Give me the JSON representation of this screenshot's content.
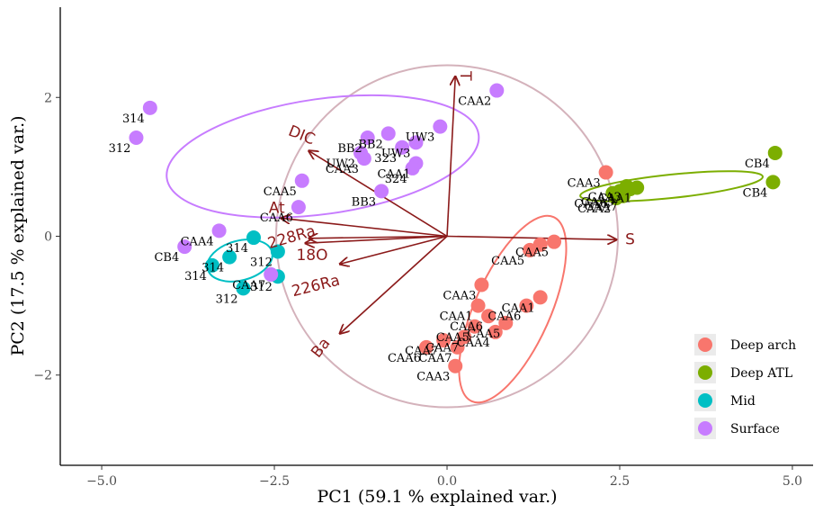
{
  "chart_data": {
    "type": "scatter",
    "subtype": "pca-biplot",
    "xlabel": "PC1 (59.1 % explained var.)",
    "ylabel": "PC2 (17.5 % explained var.)",
    "xlim": [
      -5.6,
      5.3
    ],
    "ylim": [
      -3.3,
      3.3
    ],
    "x_ticks": [
      -5.0,
      -2.5,
      0.0,
      2.5,
      5.0
    ],
    "x_tick_labels": [
      "−5.0",
      "−2.5",
      "0.0",
      "2.5",
      "5.0"
    ],
    "y_ticks": [
      -2,
      0,
      2
    ],
    "y_tick_labels": [
      "−2",
      "0",
      "2"
    ],
    "grid": false,
    "legend_position": "bottom-right",
    "series": [
      {
        "name": "Deep arch",
        "color": "#F8766D",
        "points": [
          {
            "x": 2.3,
            "y": 0.92,
            "label": "CAA3"
          },
          {
            "x": 1.55,
            "y": -0.08,
            "label": "CAA5"
          },
          {
            "x": 1.35,
            "y": -0.12,
            "label": ""
          },
          {
            "x": 1.2,
            "y": -0.2,
            "label": "CAA5"
          },
          {
            "x": 0.5,
            "y": -0.7,
            "label": "CAA3"
          },
          {
            "x": 1.35,
            "y": -0.88,
            "label": "CAA1"
          },
          {
            "x": 1.15,
            "y": -1.0,
            "label": "CAA6"
          },
          {
            "x": 0.45,
            "y": -1.0,
            "label": "CAA1"
          },
          {
            "x": 0.6,
            "y": -1.15,
            "label": "CAA6"
          },
          {
            "x": 0.85,
            "y": -1.25,
            "label": "CAA5"
          },
          {
            "x": 0.4,
            "y": -1.3,
            "label": "CAA5"
          },
          {
            "x": 0.7,
            "y": -1.38,
            "label": "CAA4"
          },
          {
            "x": 0.25,
            "y": -1.45,
            "label": "CAA7"
          },
          {
            "x": -0.05,
            "y": -1.5,
            "label": "CAA7"
          },
          {
            "x": -0.3,
            "y": -1.6,
            "label": "CAA6"
          },
          {
            "x": 0.15,
            "y": -1.6,
            "label": "CAA7"
          },
          {
            "x": 0.12,
            "y": -1.87,
            "label": "CAA3"
          }
        ]
      },
      {
        "name": "Deep ATL",
        "color": "#7CAE00",
        "points": [
          {
            "x": 4.75,
            "y": 1.2,
            "label": "CB4"
          },
          {
            "x": 4.72,
            "y": 0.78,
            "label": "CB4"
          },
          {
            "x": 2.75,
            "y": 0.7,
            "label": "CAA1"
          },
          {
            "x": 2.6,
            "y": 0.72,
            "label": "CAA3"
          },
          {
            "x": 2.5,
            "y": 0.65,
            "label": "CAA5"
          },
          {
            "x": 2.4,
            "y": 0.62,
            "label": "CAA6"
          },
          {
            "x": 2.55,
            "y": 0.58,
            "label": "CAA7"
          },
          {
            "x": 2.45,
            "y": 0.55,
            "label": "CAA2"
          },
          {
            "x": 2.65,
            "y": 0.68,
            "label": ""
          }
        ]
      },
      {
        "name": "Mid",
        "color": "#00BFC4",
        "points": [
          {
            "x": -2.8,
            "y": -0.02,
            "label": "314"
          },
          {
            "x": -2.45,
            "y": -0.22,
            "label": "312"
          },
          {
            "x": -3.15,
            "y": -0.3,
            "label": "314"
          },
          {
            "x": -3.4,
            "y": -0.42,
            "label": "314"
          },
          {
            "x": -2.45,
            "y": -0.58,
            "label": "312"
          },
          {
            "x": -2.95,
            "y": -0.75,
            "label": "312"
          }
        ]
      },
      {
        "name": "Surface",
        "color": "#C77CFF",
        "points": [
          {
            "x": 0.72,
            "y": 2.1,
            "label": "CAA2"
          },
          {
            "x": -4.3,
            "y": 1.85,
            "label": "314"
          },
          {
            "x": -4.5,
            "y": 1.42,
            "label": "312"
          },
          {
            "x": -0.1,
            "y": 1.58,
            "label": "UW3"
          },
          {
            "x": -0.85,
            "y": 1.48,
            "label": "BB2"
          },
          {
            "x": -1.15,
            "y": 1.42,
            "label": "BB2"
          },
          {
            "x": -0.45,
            "y": 1.35,
            "label": "UW3"
          },
          {
            "x": -0.65,
            "y": 1.28,
            "label": "323"
          },
          {
            "x": -1.25,
            "y": 1.2,
            "label": "UW2"
          },
          {
            "x": -0.45,
            "y": 1.05,
            "label": "CAA1"
          },
          {
            "x": -2.1,
            "y": 0.8,
            "label": "CAA5"
          },
          {
            "x": -0.95,
            "y": 0.65,
            "label": "BB3"
          },
          {
            "x": -0.5,
            "y": 0.98,
            "label": "324"
          },
          {
            "x": -1.2,
            "y": 1.12,
            "label": "CAA3"
          },
          {
            "x": -2.15,
            "y": 0.42,
            "label": "CAA6"
          },
          {
            "x": -3.3,
            "y": 0.08,
            "label": "CAA4"
          },
          {
            "x": -3.8,
            "y": -0.15,
            "label": "CB4"
          },
          {
            "x": -2.55,
            "y": -0.55,
            "label": "CAA7"
          }
        ]
      }
    ],
    "loadings": [
      {
        "name": "T",
        "x": 0.12,
        "y": 2.3
      },
      {
        "name": "DIC",
        "x": -2.0,
        "y": 1.23
      },
      {
        "name": "S",
        "x": 2.45,
        "y": -0.05
      },
      {
        "name": "At",
        "x": -2.4,
        "y": 0.26
      },
      {
        "name": "228Ra",
        "x": -2.05,
        "y": -0.1
      },
      {
        "name": "18O",
        "x": -2.0,
        "y": -0.03
      },
      {
        "name": "226Ra",
        "x": -1.55,
        "y": -0.4
      },
      {
        "name": "Ba",
        "x": -1.55,
        "y": -1.4
      }
    ]
  }
}
